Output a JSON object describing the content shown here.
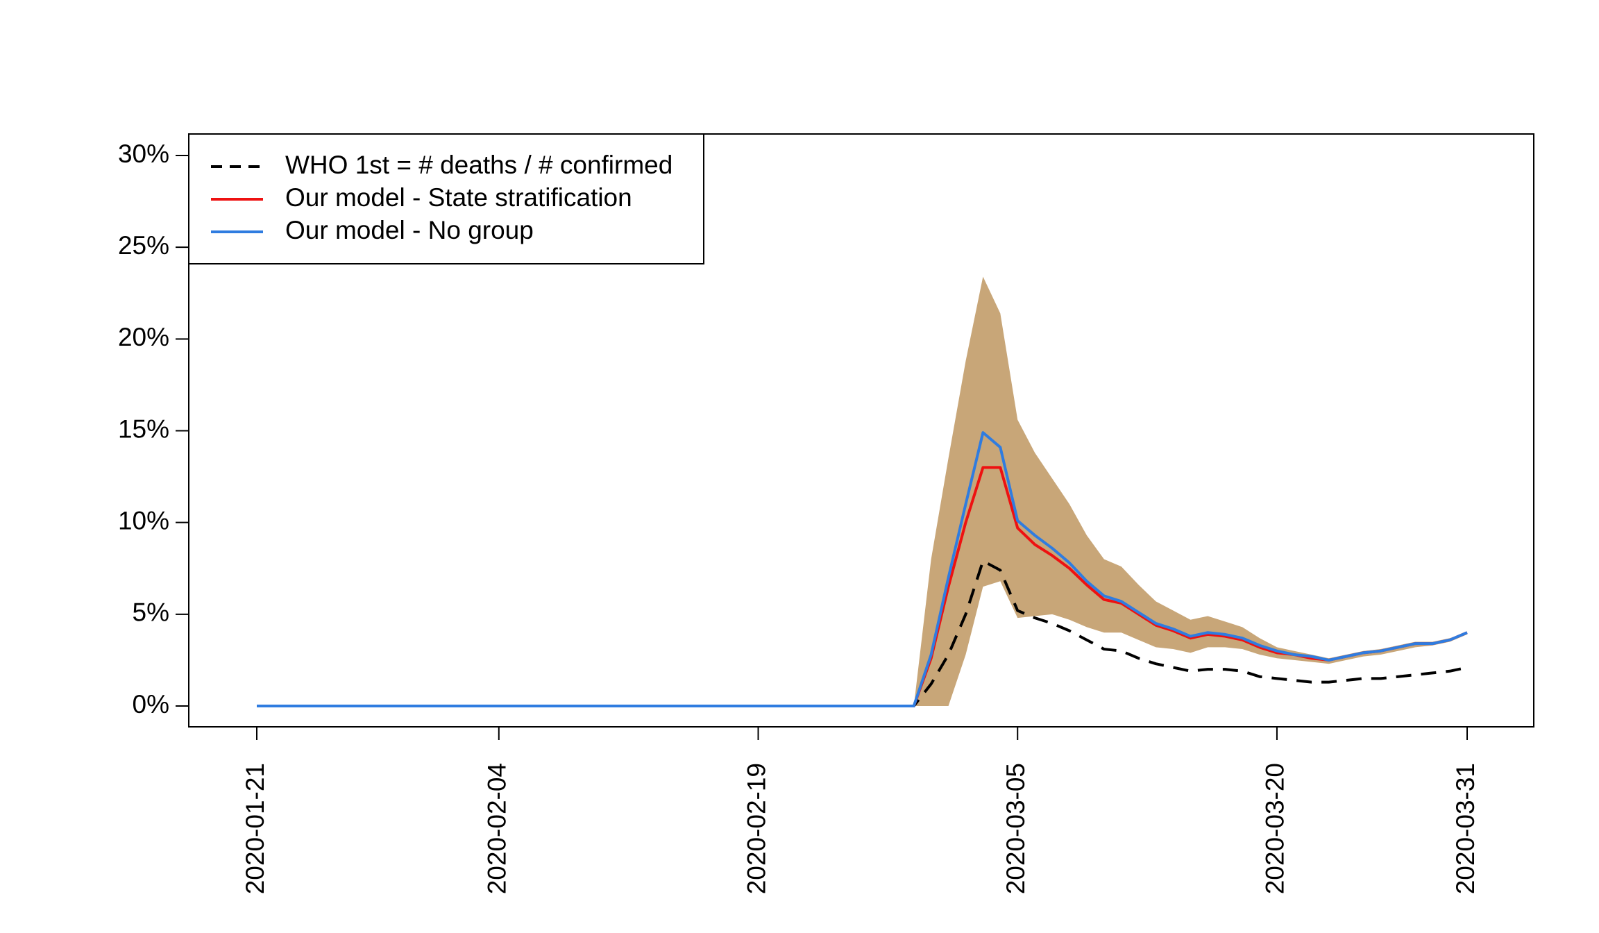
{
  "chart_data": {
    "type": "line",
    "x": [
      "2020-01-21",
      "2020-02-28",
      "2020-02-29",
      "2020-03-01",
      "2020-03-02",
      "2020-03-03",
      "2020-03-04",
      "2020-03-05",
      "2020-03-06",
      "2020-03-07",
      "2020-03-08",
      "2020-03-09",
      "2020-03-10",
      "2020-03-11",
      "2020-03-12",
      "2020-03-13",
      "2020-03-14",
      "2020-03-15",
      "2020-03-16",
      "2020-03-17",
      "2020-03-18",
      "2020-03-19",
      "2020-03-20",
      "2020-03-21",
      "2020-03-22",
      "2020-03-23",
      "2020-03-24",
      "2020-03-25",
      "2020-03-26",
      "2020-03-27",
      "2020-03-28",
      "2020-03-29",
      "2020-03-30",
      "2020-03-31"
    ],
    "band": {
      "color": "#c8a678",
      "upper": [
        0,
        0,
        8.0,
        13.5,
        18.8,
        23.4,
        21.4,
        15.6,
        13.8,
        12.4,
        11.0,
        9.3,
        8.0,
        7.6,
        6.6,
        5.7,
        5.2,
        4.7,
        4.9,
        4.6,
        4.3,
        3.7,
        3.2,
        3.0,
        2.8,
        2.6,
        2.8,
        3.0,
        3.1,
        3.3,
        3.5,
        3.5,
        3.7,
        4.0
      ],
      "lower": [
        0,
        0,
        0,
        0,
        2.8,
        6.5,
        6.8,
        4.8,
        4.9,
        5.0,
        4.7,
        4.3,
        4.0,
        4.0,
        3.6,
        3.2,
        3.1,
        2.9,
        3.2,
        3.2,
        3.1,
        2.8,
        2.6,
        2.5,
        2.4,
        2.3,
        2.5,
        2.7,
        2.8,
        3.0,
        3.2,
        3.3,
        3.5,
        3.9
      ]
    },
    "series": [
      {
        "name": "WHO 1st = # deaths / # confirmed",
        "color": "#000000",
        "dash": true,
        "values": [
          0,
          0,
          1.2,
          2.8,
          5.0,
          7.9,
          7.4,
          5.2,
          4.8,
          4.5,
          4.1,
          3.6,
          3.1,
          3.0,
          2.6,
          2.3,
          2.1,
          1.9,
          2.0,
          2.0,
          1.9,
          1.6,
          1.5,
          1.4,
          1.3,
          1.3,
          1.4,
          1.5,
          1.5,
          1.6,
          1.7,
          1.8,
          1.9,
          2.1
        ]
      },
      {
        "name": "Our model - State stratification",
        "color": "#ee1111",
        "dash": false,
        "values": [
          0,
          0,
          2.6,
          6.5,
          10.0,
          13.0,
          13.0,
          9.7,
          8.8,
          8.2,
          7.5,
          6.6,
          5.8,
          5.6,
          5.0,
          4.4,
          4.1,
          3.7,
          3.9,
          3.8,
          3.6,
          3.2,
          2.9,
          2.8,
          2.6,
          2.5,
          2.7,
          2.9,
          3.0,
          3.2,
          3.4,
          3.4,
          3.6,
          4.0
        ]
      },
      {
        "name": "Our model - No group",
        "color": "#2f7ce0",
        "dash": false,
        "values": [
          0,
          0,
          2.8,
          7.0,
          11.0,
          14.9,
          14.1,
          10.1,
          9.3,
          8.6,
          7.8,
          6.8,
          6.0,
          5.7,
          5.1,
          4.5,
          4.2,
          3.8,
          4.0,
          3.9,
          3.7,
          3.3,
          3.0,
          2.8,
          2.7,
          2.5,
          2.7,
          2.9,
          3.0,
          3.2,
          3.4,
          3.4,
          3.6,
          4.0
        ]
      }
    ],
    "xlim": [
      "2020-01-21",
      "2020-03-31"
    ],
    "xticks": [
      "2020-01-21",
      "2020-02-04",
      "2020-02-19",
      "2020-03-05",
      "2020-03-20",
      "2020-03-31"
    ],
    "ylim": [
      0,
      30
    ],
    "yticks": [
      {
        "value": 0,
        "label": "0%"
      },
      {
        "value": 5,
        "label": "5%"
      },
      {
        "value": 10,
        "label": "10%"
      },
      {
        "value": 15,
        "label": "15%"
      },
      {
        "value": 20,
        "label": "20%"
      },
      {
        "value": 25,
        "label": "25%"
      },
      {
        "value": 30,
        "label": "30%"
      }
    ],
    "legend": "topleft"
  }
}
